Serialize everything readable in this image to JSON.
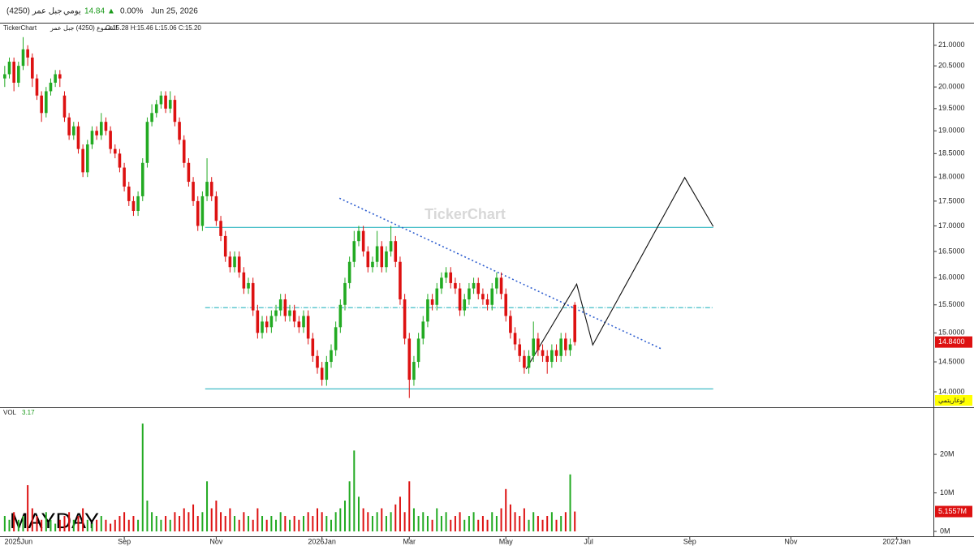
{
  "header": {
    "symbol": "جبل عمر (4250)",
    "interval": "يومي",
    "price": "14.84",
    "arrow": "▲",
    "change": "0.00%",
    "date": "Jun 25, 2026"
  },
  "legend": {
    "source": "TickerChart",
    "series": "الشموع (4250) جبل عمر",
    "ohlc": "O:15.28 H:15.46 L:15.06 C:15.20"
  },
  "watermark": "TickerChart",
  "signature": "MAYDAY",
  "chart_data": [
    {
      "type": "candlestick",
      "up_color": "#22aa22",
      "down_color": "#dd1111",
      "log_scale": true,
      "scale_label": "لوغاريتمي",
      "ylim": [
        13.75,
        21.52
      ],
      "yticks": [
        {
          "value": 14,
          "label": "14.0000"
        },
        {
          "value": 14.5,
          "label": "14.5000"
        },
        {
          "value": 15,
          "label": "15.0000"
        },
        {
          "value": 15.5,
          "label": "15.5000"
        },
        {
          "value": 16,
          "label": "16.0000"
        },
        {
          "value": 16.5,
          "label": "16.5000"
        },
        {
          "value": 17,
          "label": "17.0000"
        },
        {
          "value": 17.5,
          "label": "17.5000"
        },
        {
          "value": 18,
          "label": "18.0000"
        },
        {
          "value": 18.5,
          "label": "18.5000"
        },
        {
          "value": 19,
          "label": "19.0000"
        },
        {
          "value": 19.5,
          "label": "19.5000"
        },
        {
          "value": 20,
          "label": "20.0000"
        },
        {
          "value": 20.5,
          "label": "20.5000"
        },
        {
          "value": 21,
          "label": "21.0000"
        }
      ],
      "current_price": {
        "value": 14.84,
        "label": "14.8400"
      },
      "lines": [
        {
          "color": "#2bb5c0",
          "style": "solid",
          "x": [
            43.6,
            154.1
          ],
          "y": [
            16.97,
            16.97
          ]
        },
        {
          "color": "#2bb5c0",
          "style": "dashdot",
          "x": [
            43.6,
            154.1
          ],
          "y": [
            15.45,
            15.45
          ]
        },
        {
          "color": "#2bb5c0",
          "style": "solid",
          "x": [
            43.6,
            154.1
          ],
          "y": [
            14.05,
            14.05
          ]
        },
        {
          "color": "#2f5fd0",
          "style": "dotted",
          "x": [
            72.8,
            142.9
          ],
          "y": [
            17.56,
            14.72
          ]
        },
        {
          "color": "#111111",
          "style": "solid",
          "x": [
            113.4,
            124.4,
            127.9,
            147.9,
            154.1
          ],
          "y": [
            14.38,
            15.88,
            14.79,
            17.99,
            16.99
          ]
        }
      ],
      "ohlc": [
        [
          20.2,
          20.5,
          20.0,
          20.3
        ],
        [
          20.3,
          20.7,
          20.2,
          20.6
        ],
        [
          20.6,
          20.7,
          19.9,
          20.1
        ],
        [
          20.1,
          20.6,
          20.0,
          20.5
        ],
        [
          20.5,
          21.2,
          20.4,
          20.9
        ],
        [
          20.9,
          21.0,
          20.5,
          20.7
        ],
        [
          20.7,
          20.8,
          20.0,
          20.2
        ],
        [
          20.2,
          20.3,
          19.7,
          19.8
        ],
        [
          19.8,
          19.9,
          19.2,
          19.4
        ],
        [
          19.4,
          20.0,
          19.3,
          19.9
        ],
        [
          19.9,
          20.2,
          19.8,
          20.1
        ],
        [
          20.1,
          20.4,
          20.0,
          20.3
        ],
        [
          20.3,
          20.4,
          20.0,
          20.2
        ],
        [
          19.8,
          19.9,
          19.2,
          19.3
        ],
        [
          19.3,
          19.4,
          18.8,
          18.9
        ],
        [
          18.9,
          19.2,
          18.8,
          19.1
        ],
        [
          19.1,
          19.2,
          18.5,
          18.6
        ],
        [
          18.6,
          18.7,
          18.0,
          18.1
        ],
        [
          18.1,
          18.8,
          18.0,
          18.7
        ],
        [
          18.7,
          19.1,
          18.6,
          19.0
        ],
        [
          19.0,
          19.1,
          18.8,
          18.9
        ],
        [
          18.9,
          19.4,
          18.8,
          19.2
        ],
        [
          19.2,
          19.3,
          18.9,
          19.0
        ],
        [
          19.0,
          19.1,
          18.5,
          18.6
        ],
        [
          18.6,
          18.7,
          18.4,
          18.5
        ],
        [
          18.5,
          18.6,
          18.1,
          18.2
        ],
        [
          18.2,
          18.3,
          17.7,
          17.8
        ],
        [
          17.8,
          17.9,
          17.4,
          17.5
        ],
        [
          17.5,
          17.6,
          17.2,
          17.3
        ],
        [
          17.3,
          17.7,
          17.2,
          17.6
        ],
        [
          17.6,
          18.4,
          17.5,
          18.3
        ],
        [
          18.3,
          19.3,
          18.2,
          19.2
        ],
        [
          19.2,
          19.6,
          19.1,
          19.4
        ],
        [
          19.4,
          19.7,
          19.3,
          19.6
        ],
        [
          19.6,
          19.9,
          19.5,
          19.8
        ],
        [
          19.8,
          19.9,
          19.4,
          19.5
        ],
        [
          19.5,
          19.9,
          19.4,
          19.7
        ],
        [
          19.7,
          19.8,
          19.1,
          19.2
        ],
        [
          19.2,
          19.3,
          18.7,
          18.8
        ],
        [
          18.8,
          18.9,
          18.2,
          18.3
        ],
        [
          18.3,
          18.4,
          17.8,
          17.9
        ],
        [
          17.9,
          18.0,
          17.4,
          17.5
        ],
        [
          17.5,
          17.6,
          16.9,
          17.0
        ],
        [
          17.0,
          17.7,
          16.9,
          17.6
        ],
        [
          17.6,
          18.4,
          17.5,
          17.9
        ],
        [
          17.9,
          18.0,
          17.5,
          17.6
        ],
        [
          17.6,
          17.7,
          17.0,
          17.1
        ],
        [
          17.1,
          17.2,
          16.7,
          16.8
        ],
        [
          16.8,
          16.9,
          16.3,
          16.4
        ],
        [
          16.4,
          16.5,
          16.1,
          16.2
        ],
        [
          16.2,
          16.5,
          16.1,
          16.4
        ],
        [
          16.4,
          16.5,
          16.0,
          16.1
        ],
        [
          16.1,
          16.2,
          15.7,
          15.8
        ],
        [
          15.8,
          16.0,
          15.7,
          15.9
        ],
        [
          15.9,
          16.0,
          15.3,
          15.4
        ],
        [
          15.4,
          15.5,
          14.9,
          15.0
        ],
        [
          15.0,
          15.3,
          14.9,
          15.2
        ],
        [
          15.2,
          15.3,
          15.0,
          15.1
        ],
        [
          15.1,
          15.4,
          15.0,
          15.3
        ],
        [
          15.3,
          15.5,
          15.2,
          15.4
        ],
        [
          15.4,
          15.7,
          15.3,
          15.6
        ],
        [
          15.6,
          15.7,
          15.2,
          15.3
        ],
        [
          15.3,
          15.5,
          15.2,
          15.4
        ],
        [
          15.4,
          15.5,
          15.1,
          15.2
        ],
        [
          15.2,
          15.3,
          15.0,
          15.1
        ],
        [
          15.1,
          15.4,
          15.0,
          15.3
        ],
        [
          15.3,
          15.4,
          14.8,
          14.9
        ],
        [
          14.9,
          15.0,
          14.5,
          14.6
        ],
        [
          14.6,
          14.7,
          14.3,
          14.4
        ],
        [
          14.4,
          14.5,
          14.1,
          14.2
        ],
        [
          14.2,
          14.6,
          14.1,
          14.5
        ],
        [
          14.5,
          14.8,
          14.4,
          14.7
        ],
        [
          14.7,
          15.2,
          14.6,
          15.1
        ],
        [
          15.1,
          15.6,
          15.0,
          15.5
        ],
        [
          15.5,
          16.0,
          15.4,
          15.9
        ],
        [
          15.9,
          16.4,
          15.8,
          16.3
        ],
        [
          16.3,
          16.9,
          16.2,
          16.7
        ],
        [
          16.7,
          17.0,
          16.6,
          16.9
        ],
        [
          16.9,
          17.0,
          16.4,
          16.5
        ],
        [
          16.5,
          16.6,
          16.1,
          16.2
        ],
        [
          16.2,
          16.4,
          16.1,
          16.3
        ],
        [
          16.3,
          16.9,
          16.2,
          16.6
        ],
        [
          16.6,
          16.7,
          16.1,
          16.2
        ],
        [
          16.2,
          16.6,
          16.1,
          16.5
        ],
        [
          16.5,
          17.0,
          16.4,
          16.7
        ],
        [
          16.7,
          16.8,
          16.2,
          16.3
        ],
        [
          16.3,
          16.4,
          15.5,
          15.6
        ],
        [
          15.6,
          15.7,
          14.8,
          14.9
        ],
        [
          14.9,
          15.0,
          13.9,
          14.2
        ],
        [
          14.2,
          14.6,
          14.1,
          14.5
        ],
        [
          14.5,
          15.0,
          14.4,
          14.9
        ],
        [
          14.9,
          15.3,
          14.8,
          15.2
        ],
        [
          15.2,
          15.7,
          15.1,
          15.6
        ],
        [
          15.6,
          15.7,
          15.4,
          15.5
        ],
        [
          15.5,
          15.9,
          15.4,
          15.8
        ],
        [
          15.8,
          16.1,
          15.7,
          16.0
        ],
        [
          16.0,
          16.2,
          15.9,
          16.1
        ],
        [
          16.1,
          16.2,
          15.8,
          15.9
        ],
        [
          15.9,
          16.0,
          15.7,
          15.8
        ],
        [
          15.8,
          15.9,
          15.3,
          15.4
        ],
        [
          15.4,
          15.7,
          15.3,
          15.6
        ],
        [
          15.6,
          15.9,
          15.5,
          15.8
        ],
        [
          15.8,
          16.0,
          15.7,
          15.9
        ],
        [
          15.9,
          16.0,
          15.6,
          15.7
        ],
        [
          15.7,
          15.8,
          15.5,
          15.6
        ],
        [
          15.6,
          15.7,
          15.4,
          15.5
        ],
        [
          15.5,
          15.9,
          15.4,
          15.8
        ],
        [
          15.8,
          16.1,
          15.7,
          16.0
        ],
        [
          16.0,
          16.1,
          15.6,
          15.7
        ],
        [
          15.7,
          15.8,
          15.2,
          15.3
        ],
        [
          15.3,
          15.4,
          14.9,
          15.0
        ],
        [
          15.0,
          15.1,
          14.7,
          14.8
        ],
        [
          14.8,
          14.9,
          14.5,
          14.6
        ],
        [
          14.6,
          14.7,
          14.3,
          14.4
        ],
        [
          14.4,
          14.7,
          14.3,
          14.6
        ],
        [
          14.6,
          15.2,
          14.5,
          14.9
        ],
        [
          14.9,
          15.0,
          14.6,
          14.7
        ],
        [
          14.7,
          14.8,
          14.5,
          14.6
        ],
        [
          14.6,
          14.7,
          14.3,
          14.5
        ],
        [
          14.5,
          14.8,
          14.4,
          14.7
        ],
        [
          14.7,
          14.8,
          14.5,
          14.6
        ],
        [
          14.6,
          15.0,
          14.5,
          14.9
        ],
        [
          14.9,
          15.0,
          14.6,
          14.7
        ],
        [
          14.7,
          14.9,
          14.6,
          14.8
        ],
        [
          15.5,
          15.55,
          14.78,
          14.84
        ]
      ]
    },
    {
      "type": "bar",
      "title": "VOL",
      "title_value": "3.17",
      "ylim": [
        0,
        31.6
      ],
      "yticks": [
        {
          "value": 0,
          "label": "0M"
        },
        {
          "value": 10,
          "label": "10M"
        },
        {
          "value": 20,
          "label": "20M"
        }
      ],
      "xlim": [
        -0.5,
        202
      ],
      "xticks": [
        {
          "value": 3,
          "label": "2025Jun"
        },
        {
          "value": 26,
          "label": "Sep"
        },
        {
          "value": 46,
          "label": "Nov"
        },
        {
          "value": 69,
          "label": "2026Jan"
        },
        {
          "value": 88,
          "label": "Mar"
        },
        {
          "value": 109,
          "label": "May"
        },
        {
          "value": 127,
          "label": "Jul"
        },
        {
          "value": 149,
          "label": "Sep"
        },
        {
          "value": 171,
          "label": "Nov"
        },
        {
          "value": 194,
          "label": "2027Jan"
        }
      ],
      "values": [
        4,
        3,
        5,
        3,
        4,
        12,
        6,
        4,
        3,
        5,
        3,
        2,
        3,
        4,
        5,
        3,
        4,
        6,
        3,
        2,
        3,
        4,
        3,
        2,
        3,
        4,
        5,
        3,
        4,
        3,
        28,
        8,
        5,
        4,
        3,
        4,
        3,
        5,
        4,
        6,
        5,
        7,
        4,
        5,
        13,
        6,
        8,
        5,
        4,
        6,
        4,
        3,
        5,
        4,
        3,
        6,
        4,
        3,
        4,
        3,
        5,
        4,
        3,
        4,
        3,
        4,
        5,
        4,
        6,
        5,
        4,
        3,
        5,
        6,
        8,
        13,
        21,
        9,
        6,
        5,
        4,
        5,
        6,
        4,
        5,
        7,
        9,
        5,
        13,
        6,
        4,
        5,
        4,
        3,
        6,
        4,
        5,
        3,
        4,
        5,
        3,
        4,
        5,
        3,
        4,
        3,
        5,
        4,
        6,
        11,
        7,
        5,
        4,
        6,
        3,
        5,
        4,
        3,
        4,
        5,
        3,
        4,
        5,
        14.8,
        5.1557
      ],
      "value_labels": [
        null,
        null,
        null,
        null,
        null,
        null,
        null,
        null,
        null,
        null,
        null,
        null,
        null,
        null,
        null,
        null,
        null,
        null,
        null,
        null,
        null,
        null,
        null,
        null,
        null,
        null,
        null,
        null,
        null,
        null,
        null,
        null,
        null,
        null,
        null,
        null,
        null,
        null,
        null,
        null,
        null,
        null,
        null,
        null,
        null,
        null,
        null,
        null,
        null,
        null,
        null,
        null,
        null,
        null,
        null,
        null,
        null,
        null,
        null,
        null,
        null,
        null,
        null,
        null,
        null,
        null,
        null,
        null,
        null,
        null,
        null,
        null,
        null,
        null,
        null,
        null,
        null,
        null,
        null,
        null,
        null,
        null,
        null,
        null,
        null,
        null,
        null,
        null,
        null,
        null,
        null,
        null,
        null,
        null,
        null,
        null,
        null,
        null,
        null,
        null,
        null,
        null,
        null,
        null,
        null,
        null,
        null,
        null,
        null,
        null,
        null,
        null,
        null,
        null,
        null,
        null,
        null,
        null,
        null,
        null,
        null,
        null,
        null,
        null,
        "5.1557M"
      ]
    }
  ]
}
